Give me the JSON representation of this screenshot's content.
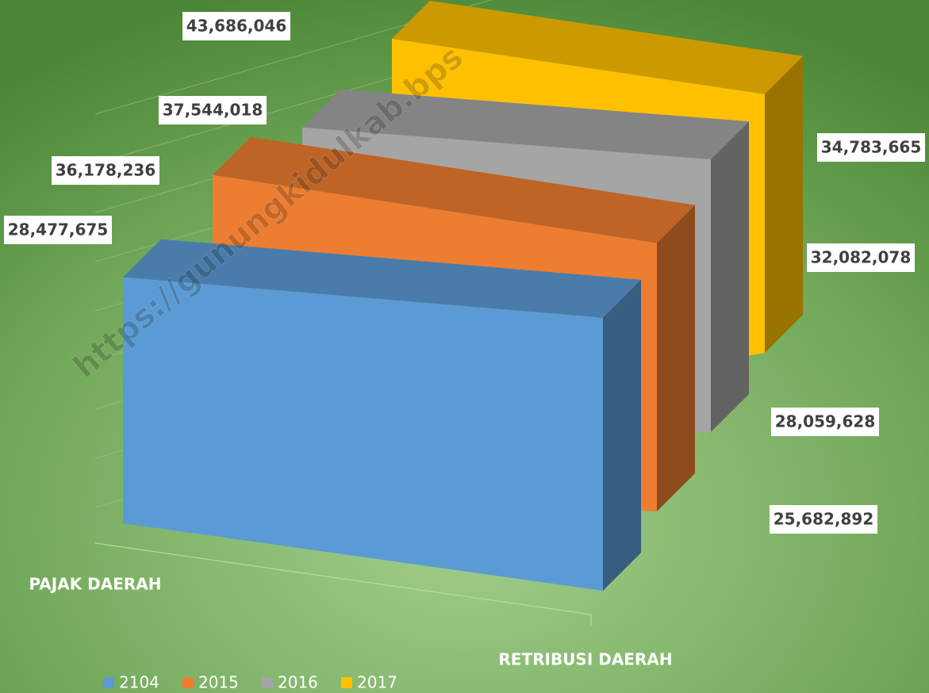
{
  "chart_data": {
    "type": "area3d",
    "categories": [
      "PAJAK DAERAH",
      "RETRIBUSI DAERAH"
    ],
    "series": [
      {
        "name": "2104",
        "color": "#5b9bd5",
        "values": [
          28477675,
          25682892
        ],
        "value_labels": [
          "28,477,675",
          "25,682,892"
        ]
      },
      {
        "name": "2015",
        "color": "#ed7d31",
        "values": [
          36178236,
          28059628
        ],
        "value_labels": [
          "36,178,236",
          "28,059,628"
        ]
      },
      {
        "name": "2016",
        "color": "#a5a5a5",
        "values": [
          37544018,
          32082078
        ],
        "value_labels": [
          "37,544,018",
          "32,082,078"
        ]
      },
      {
        "name": "2017",
        "color": "#ffc000",
        "values": [
          43686046,
          34783665
        ],
        "value_labels": [
          "43,686,046",
          "34,783,665"
        ]
      }
    ],
    "ylim": [
      0,
      50000000
    ],
    "watermark": "https://gunungkidulkab.bps"
  }
}
